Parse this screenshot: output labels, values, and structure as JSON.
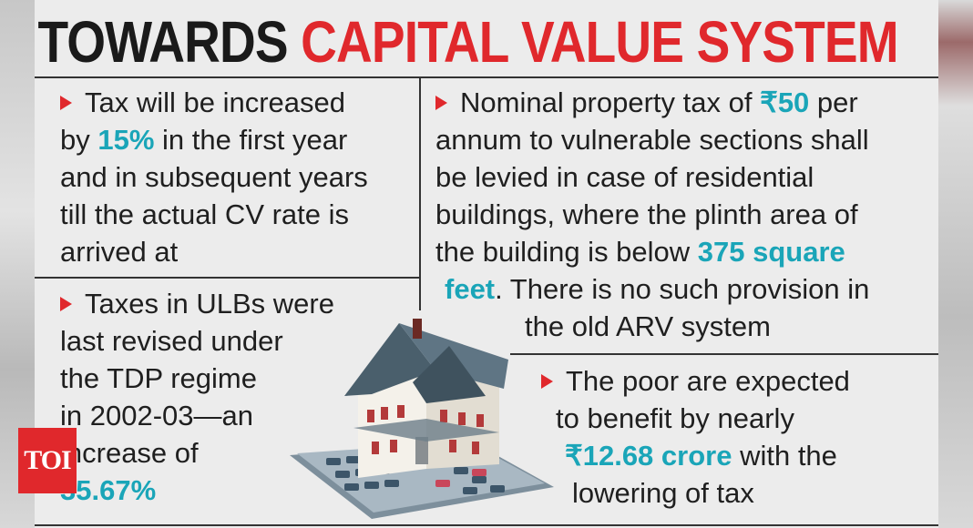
{
  "headline": {
    "part1": "TOWARDS",
    "part2": "CAPITAL VALUE SYSTEM"
  },
  "colors": {
    "accent_red": "#e0282c",
    "highlight_teal": "#1aa5b8",
    "text_dark": "#1f1f1f"
  },
  "block1": {
    "l1": "Tax will be increased",
    "l2_pre": "by ",
    "l2_hl": "15%",
    "l2_post": " in the first year",
    "l3": "and in subsequent years",
    "l4": "till the actual CV rate is",
    "l5": "arrived at"
  },
  "block2": {
    "l1": "Taxes in ULBs were",
    "l2": "last revised under",
    "l3": "the TDP regime",
    "l4": "in 2002-03—an",
    "l5": "increase of",
    "l6_hl": "35.67%"
  },
  "block3": {
    "l1_pre": "Nominal property tax of ",
    "l1_hl": "₹50",
    "l1_post": " per",
    "l2": "annum to vulnerable sections shall",
    "l3": "be levied in case of residential",
    "l4": "buildings, where the plinth area of",
    "l5_pre": "the building is below ",
    "l5_hl": "375 square",
    "l6_hl": "feet",
    "l6_post": ". There is no such provision in",
    "l7": "the old ARV system"
  },
  "block4": {
    "l1": "The poor are expected",
    "l2": "to benefit by nearly",
    "l3_hl": "₹12.68 crore",
    "l3_post": " with the",
    "l4": "lowering of tax"
  },
  "logo": {
    "text": "TOI"
  },
  "icons": [
    "arrow-bullet-icon",
    "house-on-calculator-icon",
    "toi-logo"
  ]
}
